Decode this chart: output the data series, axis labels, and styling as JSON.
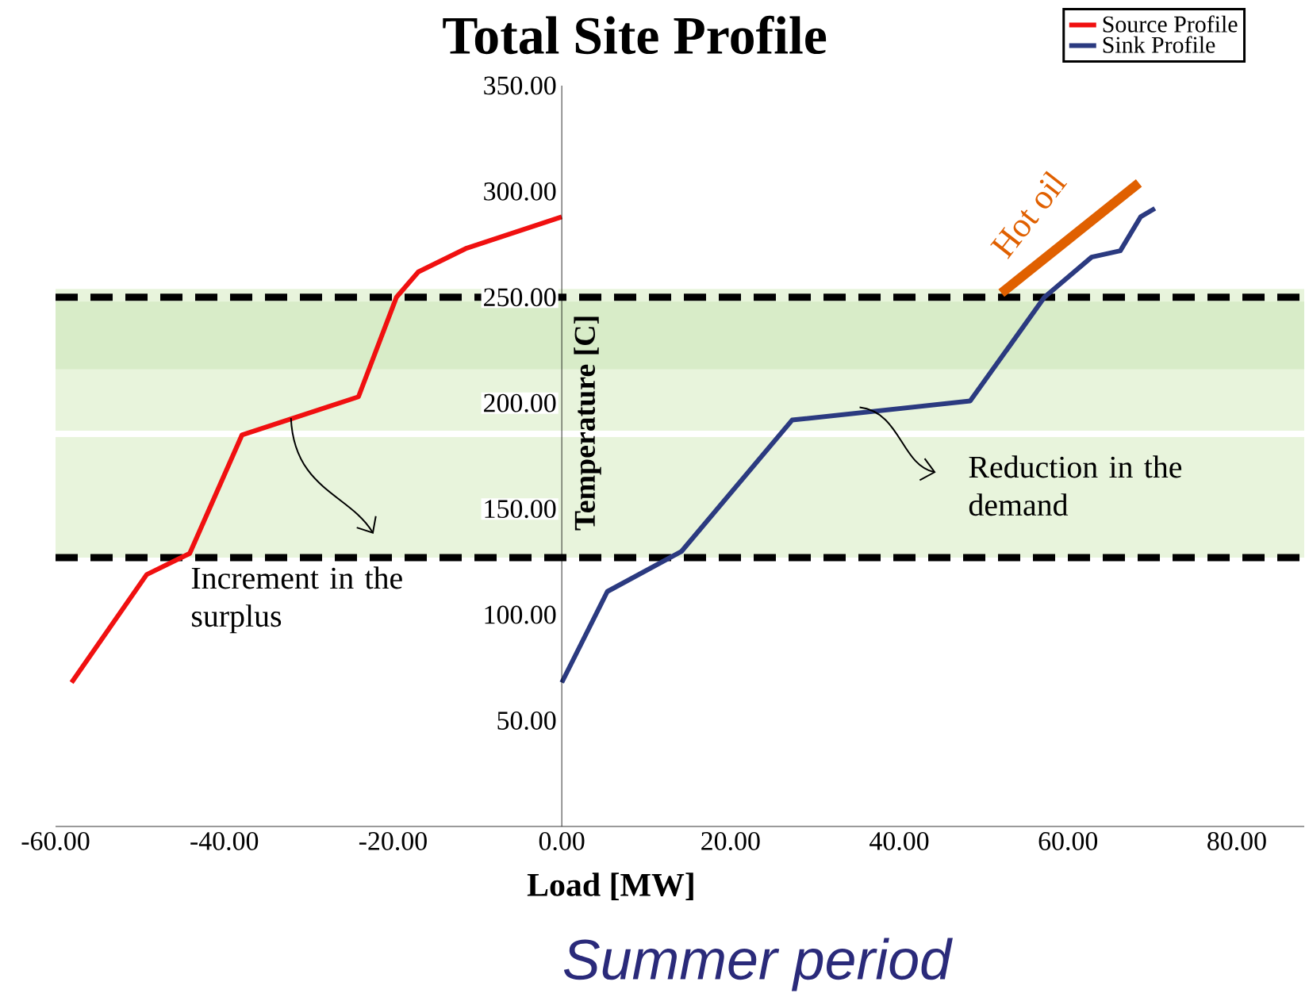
{
  "chart_data": {
    "type": "line",
    "title": "Total Site Profile",
    "xlabel": "Load [MW]",
    "ylabel": "Temperature [C]",
    "xlim": [
      -60,
      88
    ],
    "ylim": [
      0,
      350
    ],
    "xticks": [
      {
        "value": -60,
        "label": "-60.00"
      },
      {
        "value": -40,
        "label": "-40.00"
      },
      {
        "value": -20,
        "label": "-20.00"
      },
      {
        "value": 0,
        "label": "0.00"
      },
      {
        "value": 20,
        "label": "20.00"
      },
      {
        "value": 40,
        "label": "40.00"
      },
      {
        "value": 60,
        "label": "60.00"
      },
      {
        "value": 80,
        "label": "80.00"
      }
    ],
    "yticks": [
      {
        "value": 50,
        "label": "50.00"
      },
      {
        "value": 100,
        "label": "100.00"
      },
      {
        "value": 150,
        "label": "150.00"
      },
      {
        "value": 200,
        "label": "200.00"
      },
      {
        "value": 250,
        "label": "250.00"
      },
      {
        "value": 300,
        "label": "300.00"
      },
      {
        "value": 350,
        "label": "350.00"
      }
    ],
    "series": [
      {
        "name": "Source Profile",
        "color": "#f01010",
        "x": [
          -58.1,
          -49.2,
          -44.1,
          -37.9,
          -24.1,
          -19.6,
          -17.0,
          -11.4,
          0
        ],
        "values": [
          68,
          119,
          129,
          185,
          203,
          250,
          262,
          273,
          288
        ]
      },
      {
        "name": "Sink Profile",
        "color": "#2b3a80",
        "x": [
          0,
          5.4,
          14.2,
          27.3,
          48.4,
          57.2,
          62.8,
          66.2,
          68.6,
          70.3
        ],
        "values": [
          68,
          111,
          130,
          192,
          201,
          250,
          269,
          272,
          288,
          292
        ]
      },
      {
        "color": "#e06000",
        "x": [
          52.1,
          68.4
        ],
        "values": [
          252,
          304
        ]
      }
    ],
    "ref_lines": [
      {
        "axis": "y",
        "value": 250,
        "color": "#000000",
        "line_style": "dashed"
      },
      {
        "axis": "y",
        "value": 127,
        "color": "#000000",
        "line_style": "dashed"
      }
    ],
    "bands": [
      {
        "axis": "y",
        "from": 187,
        "to": 254,
        "color": "#e8f4dc"
      },
      {
        "axis": "y",
        "from": 216,
        "to": 248,
        "color": "#d8ecc8"
      },
      {
        "axis": "y",
        "from": 127,
        "to": 184,
        "color": "#e8f4dc"
      }
    ],
    "annotations": [
      {
        "text": "Increment in the surplus",
        "x": -32.1,
        "y": 193
      },
      {
        "text": "Reduction in the demand",
        "x": 35.3,
        "y": 198
      },
      "Hot oil",
      "Summer period"
    ],
    "legend": "top right",
    "marker": "none",
    "line_style": "solid"
  }
}
